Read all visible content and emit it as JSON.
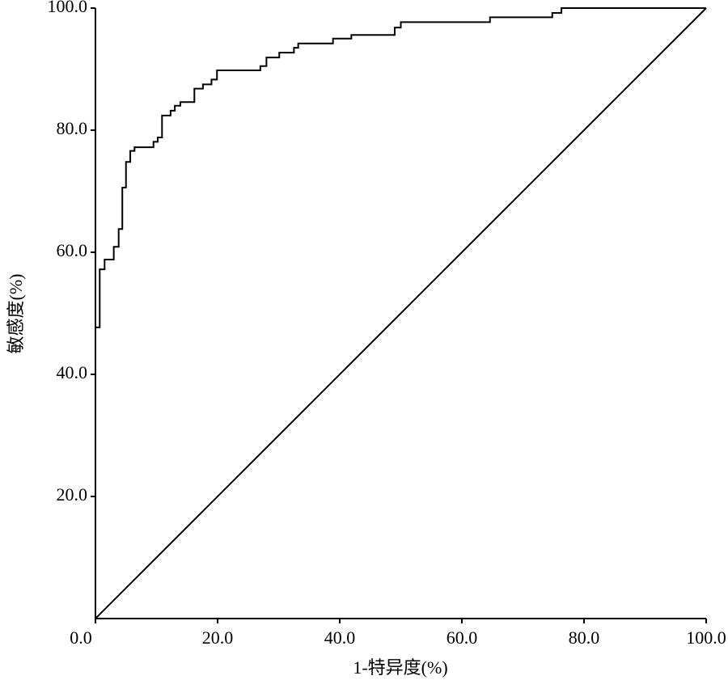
{
  "chart_data": {
    "type": "line",
    "xlabel": "1-特异度(%)",
    "ylabel": "敏感度(%)",
    "xlim": [
      0,
      100
    ],
    "ylim": [
      0,
      100
    ],
    "xticks": [
      {
        "value": 0,
        "label": "0.0"
      },
      {
        "value": 20,
        "label": "20.0"
      },
      {
        "value": 40,
        "label": "40.0"
      },
      {
        "value": 60,
        "label": "60.0"
      },
      {
        "value": 80,
        "label": "80.0"
      },
      {
        "value": 100,
        "label": "100.0"
      }
    ],
    "yticks": [
      {
        "value": 20,
        "label": "20.0"
      },
      {
        "value": 40,
        "label": "40.0"
      },
      {
        "value": 60,
        "label": "60.0"
      },
      {
        "value": 80,
        "label": "80.0"
      },
      {
        "value": 100,
        "label": "100.0"
      }
    ],
    "series": [
      {
        "color": "#000000",
        "x": [
          0,
          0,
          0.7,
          0.7,
          1.5,
          1.5,
          3.0,
          3.0,
          3.8,
          3.8,
          4.4,
          4.4,
          5.0,
          5.0,
          5.7,
          5.7,
          6.4,
          6.4,
          9.5,
          9.5,
          10.2,
          10.2,
          10.9,
          10.9,
          12.3,
          12.3,
          13.0,
          13.0,
          13.9,
          13.9,
          16.2,
          16.2,
          17.6,
          17.6,
          19.0,
          19.0,
          19.9,
          19.9,
          27.0,
          27.0,
          28.0,
          28.0,
          30.1,
          30.1,
          32.5,
          32.5,
          33.2,
          33.2,
          38.9,
          38.9,
          41.9,
          41.9,
          49.0,
          49.0,
          50.0,
          50.0,
          64.6,
          64.6,
          74.8,
          74.8,
          76.3,
          76.3,
          100
        ],
        "values": [
          0,
          47.7,
          47.7,
          57.2,
          57.2,
          58.8,
          58.8,
          60.9,
          60.9,
          63.8,
          63.8,
          70.6,
          70.6,
          74.8,
          74.8,
          76.6,
          76.6,
          77.2,
          77.2,
          78.1,
          78.1,
          78.8,
          78.8,
          82.4,
          82.4,
          83.2,
          83.2,
          84.0,
          84.0,
          84.6,
          84.6,
          86.8,
          86.8,
          87.5,
          87.5,
          88.3,
          88.3,
          89.8,
          89.8,
          90.5,
          90.5,
          91.9,
          91.9,
          92.7,
          92.7,
          93.5,
          93.5,
          94.2,
          94.2,
          95.0,
          95.0,
          95.6,
          95.6,
          96.8,
          96.8,
          97.7,
          97.7,
          98.5,
          98.5,
          99.2,
          99.2,
          100,
          100
        ]
      },
      {
        "color": "#000000",
        "x": [
          0,
          100
        ],
        "values": [
          0,
          100
        ]
      }
    ]
  }
}
